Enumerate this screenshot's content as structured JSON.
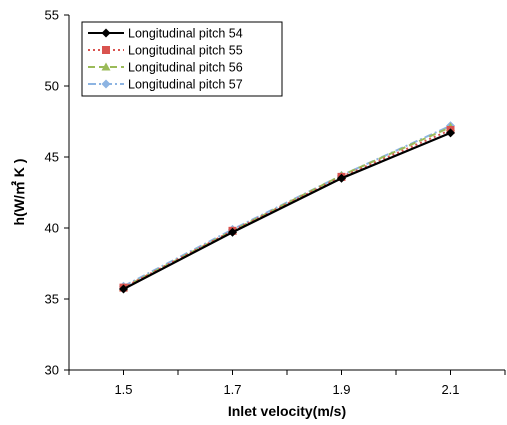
{
  "chart_data": {
    "type": "line",
    "xlabel": "Inlet velocity(m/s)",
    "ylabel": "h(W/㎡ K )",
    "x": [
      1.5,
      1.7,
      1.9,
      2.1
    ],
    "x_tick_labels": [
      "1.5",
      "1.7",
      "1.9",
      "2.1"
    ],
    "xlim": [
      1.4,
      2.2
    ],
    "ylim": [
      30,
      55
    ],
    "y_ticks": [
      30,
      35,
      40,
      45,
      50,
      55
    ],
    "y_tick_labels": [
      "30",
      "35",
      "40",
      "45",
      "50",
      "55"
    ],
    "grid": false,
    "legend_position": "top-left",
    "series": [
      {
        "name": "Longitudinal pitch 54",
        "values": [
          35.7,
          39.7,
          43.5,
          46.7
        ],
        "color": "#000000",
        "marker": "diamond",
        "dash": "solid"
      },
      {
        "name": "Longitudinal pitch 55",
        "values": [
          35.8,
          39.8,
          43.6,
          46.9
        ],
        "color": "#d9534f",
        "marker": "square",
        "dash": "dotted"
      },
      {
        "name": "Longitudinal pitch 56",
        "values": [
          35.8,
          39.8,
          43.7,
          47.1
        ],
        "color": "#9bbb59",
        "marker": "triangle",
        "dash": "dashed"
      },
      {
        "name": "Longitudinal pitch 57",
        "values": [
          35.9,
          39.9,
          43.7,
          47.2
        ],
        "color": "#8db4e2",
        "marker": "diamond",
        "dash": "dashdot"
      }
    ]
  }
}
